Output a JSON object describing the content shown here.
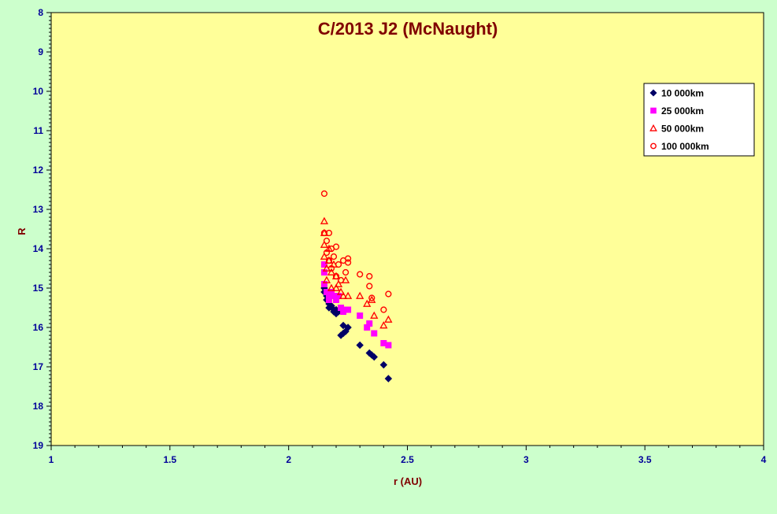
{
  "chart_data": {
    "type": "scatter",
    "title": "C/2013 J2 (McNaught)",
    "xlabel": "r (AU)",
    "ylabel": "R",
    "xlim": [
      1,
      4
    ],
    "ylim": [
      8,
      19
    ],
    "y_inverted": true,
    "x_ticks": [
      "1",
      "1.5",
      "2",
      "2.5",
      "3",
      "3.5",
      "4"
    ],
    "y_ticks": [
      "8",
      "9",
      "10",
      "11",
      "12",
      "13",
      "14",
      "15",
      "16",
      "17",
      "18",
      "19"
    ],
    "grid": false,
    "legend_position": "top-right",
    "colors": {
      "plot_background": "#ffff99",
      "outer_background": "#ccffcc",
      "axis_text": "#000099",
      "title_text": "#800000",
      "label_text": "#800000"
    },
    "series": [
      {
        "name": "10 000km",
        "marker": "diamond",
        "color": "#000066",
        "points": [
          [
            2.15,
            15.0
          ],
          [
            2.15,
            15.1
          ],
          [
            2.16,
            15.2
          ],
          [
            2.16,
            15.3
          ],
          [
            2.17,
            15.4
          ],
          [
            2.17,
            15.5
          ],
          [
            2.18,
            15.45
          ],
          [
            2.19,
            15.55
          ],
          [
            2.19,
            15.6
          ],
          [
            2.2,
            15.65
          ],
          [
            2.2,
            15.55
          ],
          [
            2.21,
            15.6
          ],
          [
            2.22,
            16.2
          ],
          [
            2.23,
            16.15
          ],
          [
            2.23,
            15.95
          ],
          [
            2.24,
            16.1
          ],
          [
            2.25,
            16.0
          ],
          [
            2.3,
            16.45
          ],
          [
            2.34,
            16.65
          ],
          [
            2.35,
            16.7
          ],
          [
            2.36,
            16.75
          ],
          [
            2.4,
            16.95
          ],
          [
            2.42,
            17.3
          ]
        ]
      },
      {
        "name": "25 000km",
        "marker": "square",
        "color": "#ff00ff",
        "points": [
          [
            2.15,
            14.4
          ],
          [
            2.15,
            14.6
          ],
          [
            2.15,
            14.9
          ],
          [
            2.16,
            15.1
          ],
          [
            2.17,
            15.2
          ],
          [
            2.17,
            15.3
          ],
          [
            2.18,
            15.1
          ],
          [
            2.19,
            15.2
          ],
          [
            2.2,
            15.3
          ],
          [
            2.21,
            15.2
          ],
          [
            2.22,
            15.5
          ],
          [
            2.23,
            15.6
          ],
          [
            2.24,
            15.55
          ],
          [
            2.25,
            15.55
          ],
          [
            2.3,
            15.7
          ],
          [
            2.33,
            16.0
          ],
          [
            2.34,
            15.9
          ],
          [
            2.36,
            16.15
          ],
          [
            2.4,
            16.4
          ],
          [
            2.42,
            16.45
          ]
        ]
      },
      {
        "name": "50 000km",
        "marker": "triangle",
        "color": "#ff0000",
        "points": [
          [
            2.15,
            13.3
          ],
          [
            2.15,
            13.6
          ],
          [
            2.15,
            13.9
          ],
          [
            2.15,
            14.2
          ],
          [
            2.16,
            14.5
          ],
          [
            2.16,
            14.8
          ],
          [
            2.17,
            14.0
          ],
          [
            2.17,
            14.3
          ],
          [
            2.18,
            14.6
          ],
          [
            2.18,
            15.0
          ],
          [
            2.19,
            14.4
          ],
          [
            2.2,
            14.7
          ],
          [
            2.2,
            15.0
          ],
          [
            2.21,
            14.9
          ],
          [
            2.22,
            15.1
          ],
          [
            2.23,
            15.2
          ],
          [
            2.24,
            14.8
          ],
          [
            2.25,
            15.2
          ],
          [
            2.3,
            15.2
          ],
          [
            2.33,
            15.4
          ],
          [
            2.35,
            15.3
          ],
          [
            2.36,
            15.7
          ],
          [
            2.4,
            15.95
          ],
          [
            2.42,
            15.8
          ]
        ]
      },
      {
        "name": "100 000km",
        "marker": "circle",
        "color": "#ff0000",
        "points": [
          [
            2.15,
            12.6
          ],
          [
            2.15,
            13.6
          ],
          [
            2.16,
            13.8
          ],
          [
            2.16,
            14.1
          ],
          [
            2.17,
            13.6
          ],
          [
            2.17,
            14.3
          ],
          [
            2.18,
            14.0
          ],
          [
            2.18,
            14.5
          ],
          [
            2.19,
            14.2
          ],
          [
            2.2,
            13.95
          ],
          [
            2.2,
            14.7
          ],
          [
            2.21,
            14.4
          ],
          [
            2.22,
            14.8
          ],
          [
            2.23,
            14.3
          ],
          [
            2.24,
            14.6
          ],
          [
            2.25,
            14.25
          ],
          [
            2.25,
            14.35
          ],
          [
            2.3,
            14.65
          ],
          [
            2.34,
            14.7
          ],
          [
            2.34,
            14.95
          ],
          [
            2.35,
            15.25
          ],
          [
            2.4,
            15.55
          ],
          [
            2.42,
            15.15
          ]
        ]
      }
    ]
  }
}
